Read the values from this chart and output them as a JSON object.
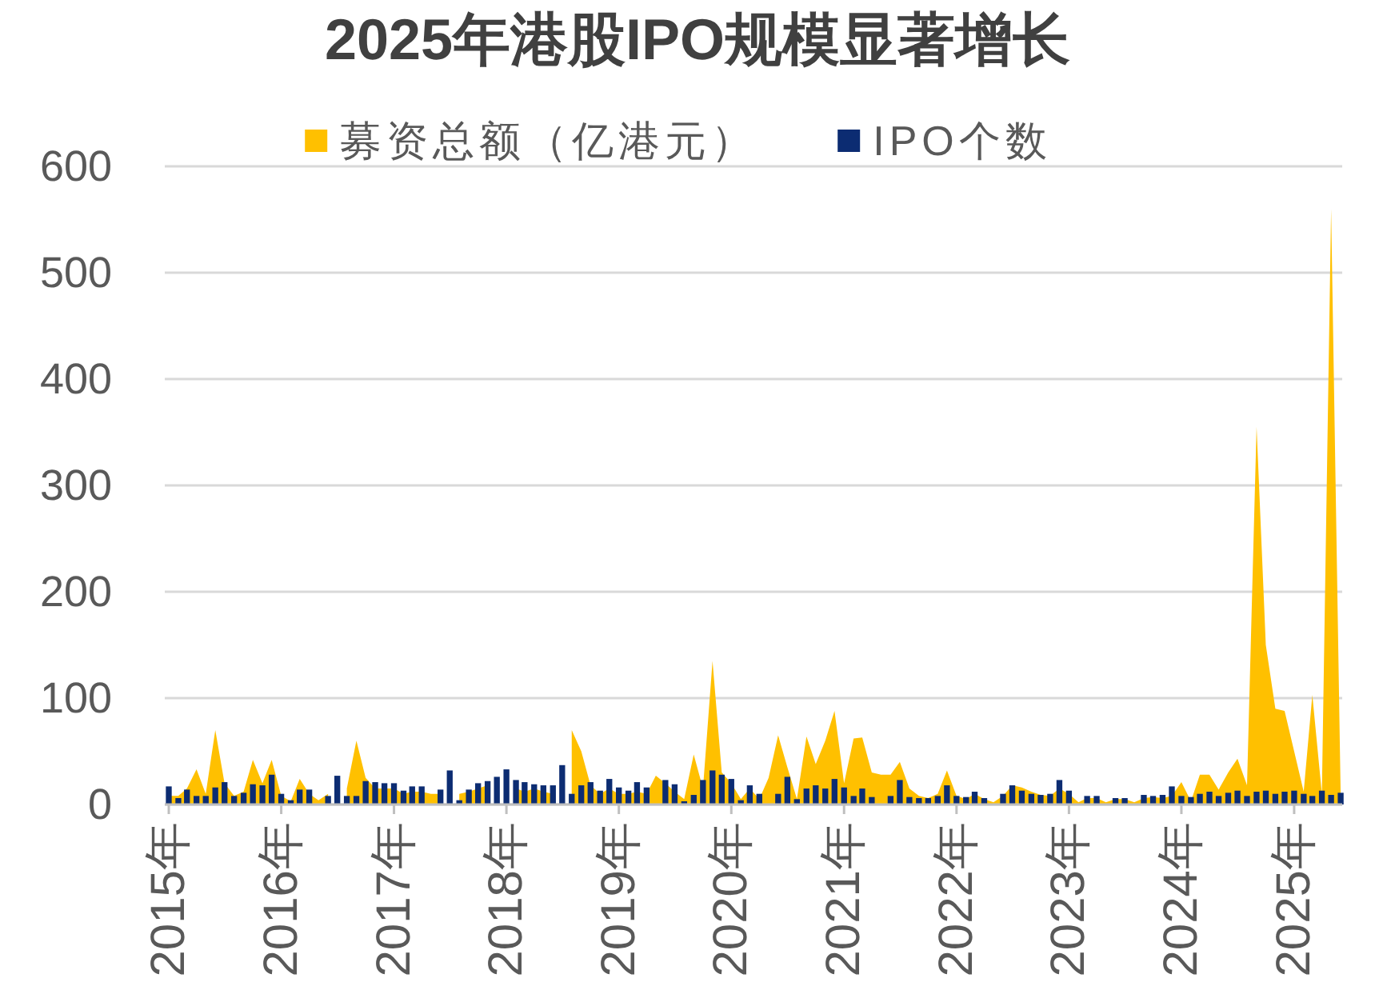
{
  "chart_data": {
    "type": "bar",
    "title": "2025年港股IPO规模显著增长",
    "x": [
      "2015-01",
      "2015-02",
      "2015-03",
      "2015-04",
      "2015-05",
      "2015-06",
      "2015-07",
      "2015-08",
      "2015-09",
      "2015-10",
      "2015-11",
      "2015-12",
      "2016-01",
      "2016-02",
      "2016-03",
      "2016-04",
      "2016-05",
      "2016-06",
      "2016-07",
      "2016-08",
      "2016-09",
      "2016-10",
      "2016-11",
      "2016-12",
      "2017-01",
      "2017-02",
      "2017-03",
      "2017-04",
      "2017-05",
      "2017-06",
      "2017-07",
      "2017-08",
      "2017-09",
      "2017-10",
      "2017-11",
      "2017-12",
      "2018-01",
      "2018-02",
      "2018-03",
      "2018-04",
      "2018-05",
      "2018-06",
      "2018-07",
      "2018-08",
      "2018-09",
      "2018-10",
      "2018-11",
      "2018-12",
      "2019-01",
      "2019-02",
      "2019-03",
      "2019-04",
      "2019-05",
      "2019-06",
      "2019-07",
      "2019-08",
      "2019-09",
      "2019-10",
      "2019-11",
      "2019-12",
      "2020-01",
      "2020-02",
      "2020-03",
      "2020-04",
      "2020-05",
      "2020-06",
      "2020-07",
      "2020-08",
      "2020-09",
      "2020-10",
      "2020-11",
      "2020-12",
      "2021-01",
      "2021-02",
      "2021-03",
      "2021-04",
      "2021-05",
      "2021-06",
      "2021-07",
      "2021-08",
      "2021-09",
      "2021-10",
      "2021-11",
      "2021-12",
      "2022-01",
      "2022-02",
      "2022-03",
      "2022-04",
      "2022-05",
      "2022-06",
      "2022-07",
      "2022-08",
      "2022-09",
      "2022-10",
      "2022-11",
      "2022-12",
      "2023-01",
      "2023-02",
      "2023-03",
      "2023-04",
      "2023-05",
      "2023-06",
      "2023-07",
      "2023-08",
      "2023-09",
      "2023-10",
      "2023-11",
      "2023-12",
      "2024-01",
      "2024-02",
      "2024-03",
      "2024-04",
      "2024-05",
      "2024-06",
      "2024-07",
      "2024-08",
      "2024-09",
      "2024-10",
      "2024-11",
      "2024-12",
      "2025-01",
      "2025-02",
      "2025-03",
      "2025-04",
      "2025-05",
      "2025-06"
    ],
    "series": [
      {
        "name": "募资总额（亿港元）",
        "type": "area",
        "color": "#ffc000",
        "values": [
          8,
          8,
          15,
          33,
          10,
          70,
          20,
          8,
          12,
          42,
          20,
          42,
          8,
          3,
          24,
          10,
          4,
          10,
          null,
          15,
          60,
          25,
          15,
          15,
          15,
          10,
          12,
          12,
          10,
          10,
          null,
          10,
          12,
          15,
          18,
          null,
          null,
          15,
          12,
          15,
          12,
          10,
          null,
          70,
          50,
          18,
          10,
          15,
          10,
          10,
          12,
          10,
          27,
          20,
          12,
          5,
          47,
          15,
          135,
          30,
          20,
          5,
          15,
          5,
          25,
          65,
          35,
          5,
          64,
          38,
          60,
          88,
          20,
          62,
          63,
          30,
          28,
          28,
          40,
          15,
          8,
          6,
          10,
          32,
          8,
          5,
          10,
          5,
          2,
          8,
          18,
          16,
          12,
          9,
          8,
          15,
          10,
          2,
          6,
          6,
          2,
          5,
          5,
          2,
          6,
          7,
          6,
          8,
          21,
          3,
          28,
          28,
          14,
          30,
          43,
          18,
          355,
          150,
          90,
          88,
          50,
          12,
          103,
          10,
          560,
          8
        ]
      },
      {
        "name": "IPO个数",
        "color": "#0c2c72",
        "values": [
          17,
          6,
          14,
          8,
          8,
          16,
          21,
          8,
          11,
          19,
          18,
          28,
          10,
          4,
          14,
          14,
          0,
          8,
          27,
          8,
          8,
          22,
          21,
          20,
          20,
          13,
          17,
          17,
          0,
          14,
          32,
          4,
          14,
          20,
          22,
          26,
          33,
          23,
          21,
          19,
          18,
          18,
          37,
          10,
          18,
          21,
          13,
          24,
          16,
          13,
          21,
          16,
          0,
          23,
          19,
          3,
          9,
          23,
          32,
          28,
          24,
          4,
          18,
          10,
          0,
          10,
          26,
          5,
          15,
          18,
          15,
          24,
          16,
          8,
          15,
          7,
          0,
          8,
          23,
          7,
          6,
          6,
          8,
          18,
          8,
          7,
          12,
          6,
          0,
          10,
          18,
          13,
          10,
          9,
          10,
          23,
          13,
          0,
          8,
          8,
          0,
          6,
          6,
          0,
          9,
          8,
          9,
          17,
          8,
          7,
          10,
          12,
          8,
          11,
          13,
          8,
          12,
          13,
          10,
          12,
          13,
          10,
          8,
          13,
          9,
          11
        ]
      }
    ],
    "xlim": [
      "2014-12-19",
      "2025-06-06"
    ],
    "xticks": [
      {
        "value": "2015-01",
        "label": "2015年"
      },
      {
        "value": "2016-01",
        "label": "2016年"
      },
      {
        "value": "2017-01",
        "label": "2017年"
      },
      {
        "value": "2018-01",
        "label": "2018年"
      },
      {
        "value": "2019-01",
        "label": "2019年"
      },
      {
        "value": "2020-01",
        "label": "2020年"
      },
      {
        "value": "2021-01",
        "label": "2021年"
      },
      {
        "value": "2022-01",
        "label": "2022年"
      },
      {
        "value": "2023-01",
        "label": "2023年"
      },
      {
        "value": "2024-01",
        "label": "2024年"
      },
      {
        "value": "2025-01",
        "label": "2025年"
      }
    ],
    "ylim": [
      0,
      600
    ],
    "yticks": [
      0,
      100,
      200,
      300,
      400,
      500,
      600
    ],
    "grid": "y",
    "legend": "top"
  }
}
